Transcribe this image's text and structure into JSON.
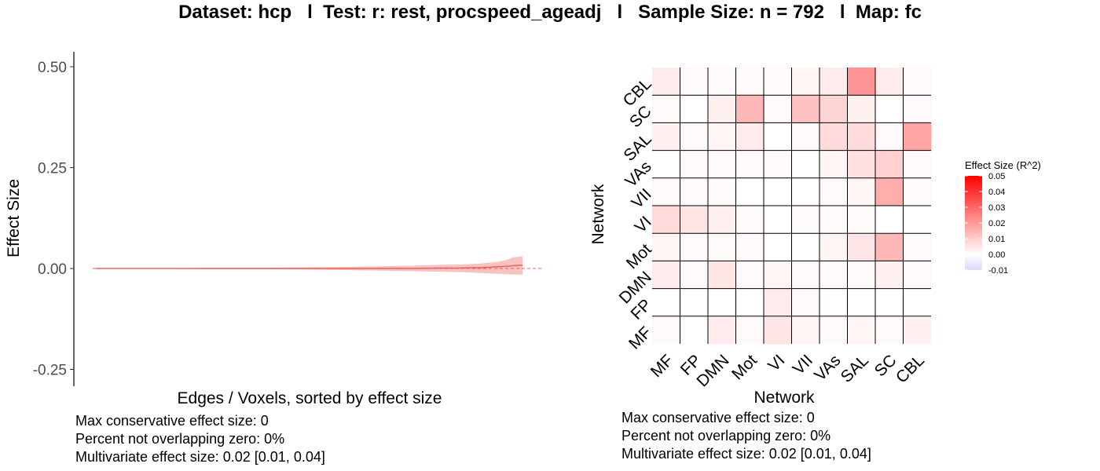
{
  "title": "Dataset: hcp   l  Test: r: rest, procspeed_ageadj   l   Sample Size: n = 792   l  Map: fc",
  "chart_data": [
    {
      "type": "area",
      "xlabel": "Edges / Voxels, sorted by effect size",
      "ylabel": "Effect Size",
      "ylim": [
        -0.28,
        0.53
      ],
      "yticks": [
        -0.25,
        0.0,
        0.25,
        0.5
      ],
      "ytick_labels": [
        "-0.25",
        "0.00",
        "0.25",
        "0.50"
      ],
      "reference_line": 0,
      "grid": false,
      "series": [
        {
          "x": [
            0,
            0.1,
            0.2,
            0.3,
            0.4,
            0.5,
            0.6,
            0.65,
            0.7,
            0.75,
            0.8,
            0.85,
            0.88,
            0.9,
            0.92,
            0.94,
            0.96,
            0.98,
            1.0
          ],
          "values": [
            0,
            0,
            0,
            0,
            0,
            0,
            0,
            0,
            0,
            0,
            0.001,
            0.001,
            0.002,
            0.002,
            0.003,
            0.004,
            0.005,
            0.007,
            0.008
          ],
          "lower": [
            0,
            -0.001,
            -0.001,
            -0.002,
            -0.002,
            -0.003,
            -0.004,
            -0.005,
            -0.006,
            -0.007,
            -0.008,
            -0.009,
            -0.01,
            -0.011,
            -0.012,
            -0.013,
            -0.014,
            -0.015,
            -0.015
          ],
          "upper": [
            0,
            0.001,
            0.001,
            0.002,
            0.002,
            0.003,
            0.004,
            0.005,
            0.006,
            0.007,
            0.009,
            0.01,
            0.011,
            0.012,
            0.014,
            0.016,
            0.02,
            0.028,
            0.03
          ]
        }
      ],
      "colors": {
        "line": "#e8635f",
        "band": "#f9c2c0",
        "zero": "#e8635f"
      },
      "stats": [
        "Max conservative effect size: 0",
        "Percent not overlapping zero: 0%",
        "Multivariate effect size: 0.02 [0.01, 0.04]"
      ]
    },
    {
      "type": "heatmap",
      "xlabel": "Network",
      "ylabel": "Network",
      "categories": [
        "MF",
        "FP",
        "DMN",
        "Mot",
        "VI",
        "VII",
        "VAs",
        "SAL",
        "SC",
        "CBL"
      ],
      "values": [
        [
          0.001,
          0.0,
          0.004,
          0.001,
          0.005,
          0.002,
          0.001,
          0.002,
          0.001,
          0.003
        ],
        [
          0.0,
          0.0,
          0.0,
          0.0,
          0.004,
          0.001,
          0.0,
          0.0,
          0.0,
          0.0
        ],
        [
          0.004,
          0.001,
          0.005,
          0.001,
          0.002,
          0.001,
          0.001,
          0.001,
          0.003,
          0.001
        ],
        [
          0.002,
          0.001,
          0.001,
          0.001,
          0.0,
          0.0,
          0.002,
          0.005,
          0.014,
          0.001
        ],
        [
          0.007,
          0.005,
          0.003,
          0.001,
          0.0,
          0.001,
          0.001,
          0.001,
          0.0,
          0.0
        ],
        [
          0.001,
          0.001,
          0.001,
          0.0,
          0.0,
          0.0,
          0.001,
          0.002,
          0.016,
          0.001
        ],
        [
          0.0,
          0.001,
          0.001,
          0.001,
          0.001,
          0.0,
          0.002,
          0.006,
          0.009,
          0.001
        ],
        [
          0.003,
          0.001,
          0.002,
          0.004,
          0.0,
          0.001,
          0.007,
          0.007,
          0.001,
          0.018
        ],
        [
          0.001,
          0.0,
          0.003,
          0.014,
          0.001,
          0.012,
          0.008,
          0.003,
          0.0,
          0.001
        ],
        [
          0.004,
          0.001,
          0.001,
          0.001,
          0.001,
          0.002,
          0.004,
          0.021,
          0.004,
          0.001
        ]
      ],
      "legend": {
        "title": "Effect Size (R^2)",
        "placement": "right",
        "range": [
          -0.01,
          0.05
        ],
        "ticks": [
          0.05,
          0.04,
          0.03,
          0.02,
          0.01,
          0.0,
          -0.01
        ],
        "tick_labels": [
          "0.05",
          "0.04",
          "0.03",
          "0.02",
          "0.01",
          "0.00",
          "-0.01"
        ],
        "colors": {
          "high": "#ff0000",
          "mid": "#ffffff",
          "low": "#e1d5ff"
        }
      },
      "stats": [
        "Max conservative effect size: 0",
        "Percent not overlapping zero: 0%",
        "Multivariate effect size: 0.02 [0.01, 0.04]"
      ]
    }
  ]
}
